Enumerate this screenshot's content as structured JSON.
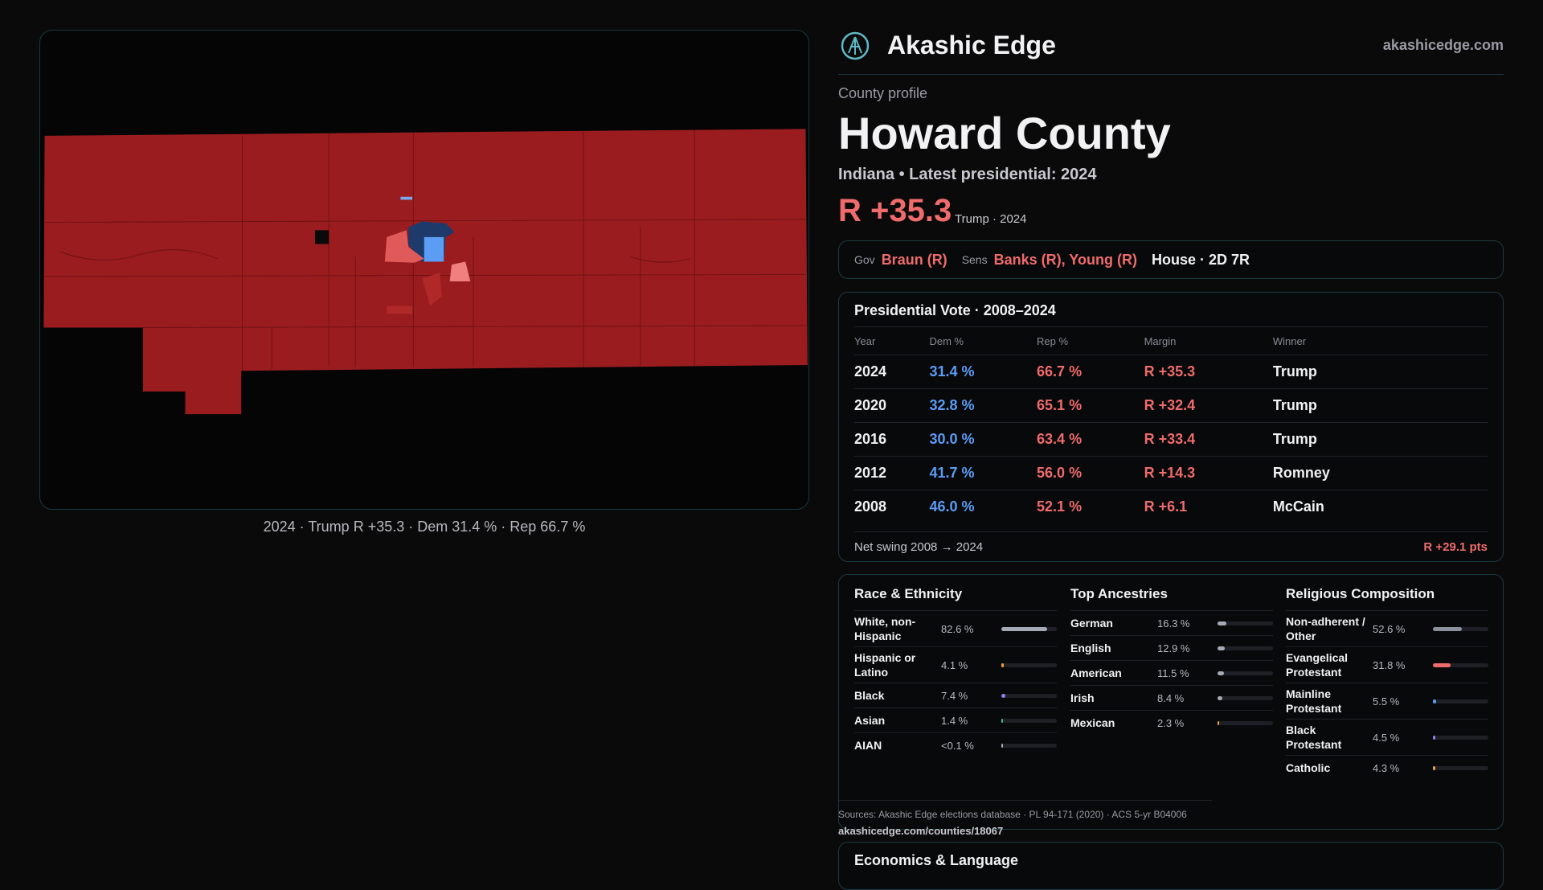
{
  "header": {
    "title": "Akashic Edge",
    "domain": "akashicedge.com"
  },
  "map": {
    "caption": "2024 · Trump R +35.3 · Dem 31.4 % · Rep 66.7 %"
  },
  "profile": {
    "eyebrow": "County profile",
    "name": "Howard County",
    "subtitle": "Indiana • Latest presidential: 2024",
    "margin": "R +35.3",
    "margin_note": "Trump · 2024"
  },
  "officials": {
    "gov_label": "Gov",
    "gov": "Braun (R)",
    "sen_label": "Sens",
    "sen": "Banks (R), Young (R)",
    "house": "House · 2D 7R"
  },
  "presidential": {
    "title": "Presidential Vote · 2008–2024",
    "columns": [
      "Year",
      "Dem %",
      "Rep %",
      "Margin",
      "Winner"
    ],
    "rows": [
      [
        "2024",
        "31.4 %",
        "66.7 %",
        "R +35.3",
        "Trump"
      ],
      [
        "2020",
        "32.8 %",
        "65.1 %",
        "R +32.4",
        "Trump"
      ],
      [
        "2016",
        "30.0 %",
        "63.4 %",
        "R +33.4",
        "Trump"
      ],
      [
        "2012",
        "41.7 %",
        "56.0 %",
        "R +14.3",
        "Romney"
      ],
      [
        "2008",
        "46.0 %",
        "52.1 %",
        "R +6.1",
        "McCain"
      ]
    ],
    "swing_label": "Net swing 2008 → 2024",
    "swing_value": "R +29.1 pts"
  },
  "race": {
    "title": "Race & Ethnicity",
    "rows": [
      {
        "label": "White, non-Hispanic",
        "value": 82.6,
        "value_label": "82.6 %",
        "color": "#a4aab6"
      },
      {
        "label": "Hispanic or Latino",
        "value": 4.1,
        "value_label": "4.1 %",
        "color": "#f0a030"
      },
      {
        "label": "Black",
        "value": 7.4,
        "value_label": "7.4 %",
        "color": "#9a7cf0"
      },
      {
        "label": "Asian",
        "value": 1.4,
        "value_label": "1.4 %",
        "color": "#3fbf8a"
      },
      {
        "label": "AIAN",
        "value": 0.05,
        "value_label": "<0.1 %",
        "color": "#a4aab6"
      }
    ]
  },
  "ancestry": {
    "title": "Top Ancestries",
    "rows": [
      {
        "label": "German",
        "value": 16.3,
        "value_label": "16.3 %",
        "color": "#a4aab6"
      },
      {
        "label": "English",
        "value": 12.9,
        "value_label": "12.9 %",
        "color": "#a4aab6"
      },
      {
        "label": "American",
        "value": 11.5,
        "value_label": "11.5 %",
        "color": "#a4aab6"
      },
      {
        "label": "Irish",
        "value": 8.4,
        "value_label": "8.4 %",
        "color": "#a4aab6"
      },
      {
        "label": "Mexican",
        "value": 2.3,
        "value_label": "2.3 %",
        "color": "#f0a030"
      }
    ]
  },
  "religion": {
    "title": "Religious Composition",
    "rows": [
      {
        "label": "Non-adherent / Other",
        "value": 52.6,
        "value_label": "52.6 %",
        "color": "#8a909c"
      },
      {
        "label": "Evangelical Protestant",
        "value": 31.8,
        "value_label": "31.8 %",
        "color": "#f06b6b"
      },
      {
        "label": "Mainline Protestant",
        "value": 5.5,
        "value_label": "5.5 %",
        "color": "#5b9cf5"
      },
      {
        "label": "Black Protestant",
        "value": 4.5,
        "value_label": "4.5 %",
        "color": "#9a7cf0"
      },
      {
        "label": "Catholic",
        "value": 4.3,
        "value_label": "4.3 %",
        "color": "#f0a030"
      }
    ]
  },
  "sources": {
    "text": "Sources: Akashic Edge elections database · PL 94-171 (2020) · ACS 5-yr B04006",
    "url": "akashicedge.com/counties/18067"
  },
  "economics": {
    "title": "Economics & Language"
  }
}
